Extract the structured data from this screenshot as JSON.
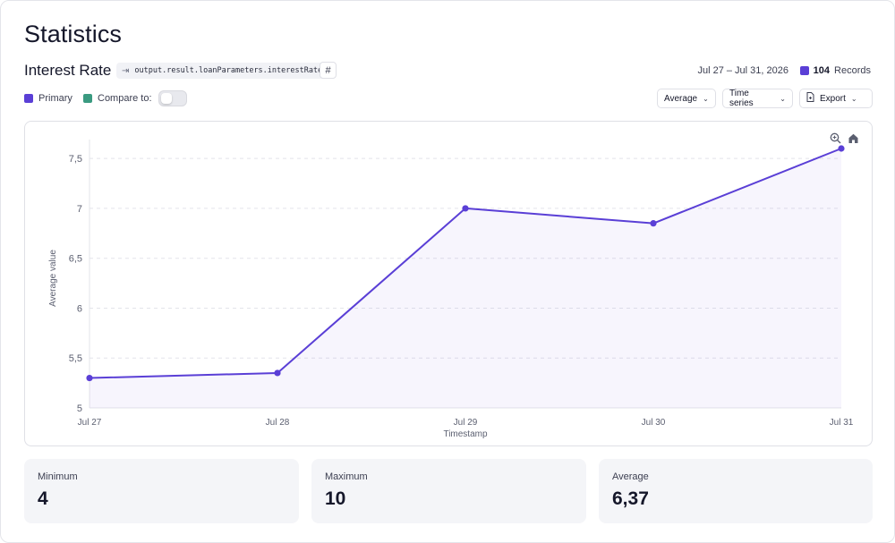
{
  "page": {
    "title": "Statistics",
    "metric_name": "Interest Rate",
    "path": "output.result.loanParameters.interestRate",
    "hash_label": "#",
    "date_range": "Jul 27 – Jul 31, 2026",
    "records_count": "104",
    "records_label": "Records"
  },
  "legend": {
    "primary_label": "Primary",
    "compare_label": "Compare to:",
    "primary_color": "#5a3fd6",
    "compare_color": "#3a9a80"
  },
  "controls": {
    "aggregation": "Average",
    "view": "Time series",
    "export": "Export"
  },
  "icons": {
    "zoom": "zoom-in-icon",
    "home": "home-icon",
    "path": "arrow-right-icon",
    "export": "document-icon"
  },
  "chart_data": {
    "type": "line",
    "categories": [
      "Jul 27",
      "Jul 28",
      "Jul 29",
      "Jul 30",
      "Jul 31"
    ],
    "series": [
      {
        "name": "Primary",
        "values": [
          5.3,
          5.35,
          7.0,
          6.85,
          7.6
        ],
        "color": "#5a3fd6"
      }
    ],
    "xlabel": "Timestamp",
    "ylabel": "Average value",
    "ylim": [
      5,
      7.6
    ],
    "yticks": [
      5,
      5.5,
      6,
      6.5,
      7,
      7.5
    ],
    "ytick_labels": [
      "5",
      "5,5",
      "6",
      "6,5",
      "7",
      "7,5"
    ],
    "grid": "horizontal dashed",
    "area_fill": true
  },
  "stats": [
    {
      "label": "Minimum",
      "value": "4"
    },
    {
      "label": "Maximum",
      "value": "10"
    },
    {
      "label": "Average",
      "value": "6,37"
    }
  ]
}
